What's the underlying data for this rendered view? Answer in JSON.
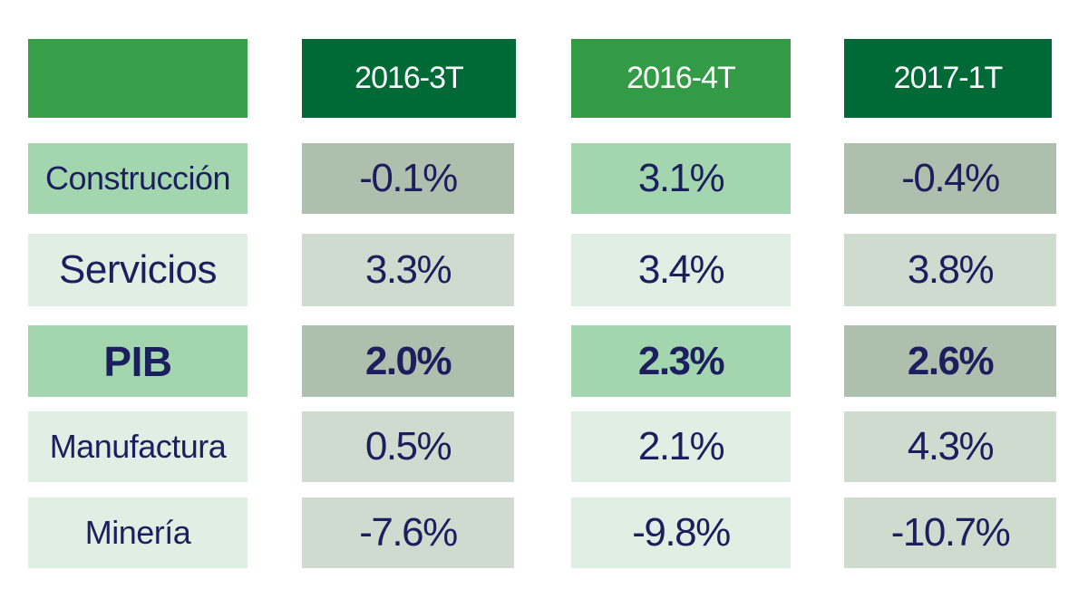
{
  "chart_data": {
    "type": "table",
    "columns": [
      "",
      "2016-3T",
      "2016-4T",
      "2017-1T"
    ],
    "rows": [
      {
        "label": "Construcción",
        "values": [
          "-0.1%",
          "3.1%",
          "-0.4%"
        ]
      },
      {
        "label": "Servicios",
        "values": [
          "3.3%",
          "3.4%",
          "3.8%"
        ]
      },
      {
        "label": "PIB",
        "values": [
          "2.0%",
          "2.3%",
          "2.6%"
        ],
        "bold": true
      },
      {
        "label": "Manufactura",
        "values": [
          "0.5%",
          "2.1%",
          "4.3%"
        ]
      },
      {
        "label": "Minería",
        "values": [
          "-7.6%",
          "-9.8%",
          "-10.7%"
        ]
      }
    ]
  },
  "colors": {
    "header_dark_green": "#006a37",
    "header_green": "#339a45",
    "header_blank_green": "#36a04a",
    "row_light_green": "#a3d6ae",
    "row_pale_green": "#e0efe4",
    "val_dark_gray_green": "#adbfad",
    "val_gray_green": "#d0dbd0",
    "text_navy": "#1c1f5e",
    "text_white": "#ffffff"
  }
}
